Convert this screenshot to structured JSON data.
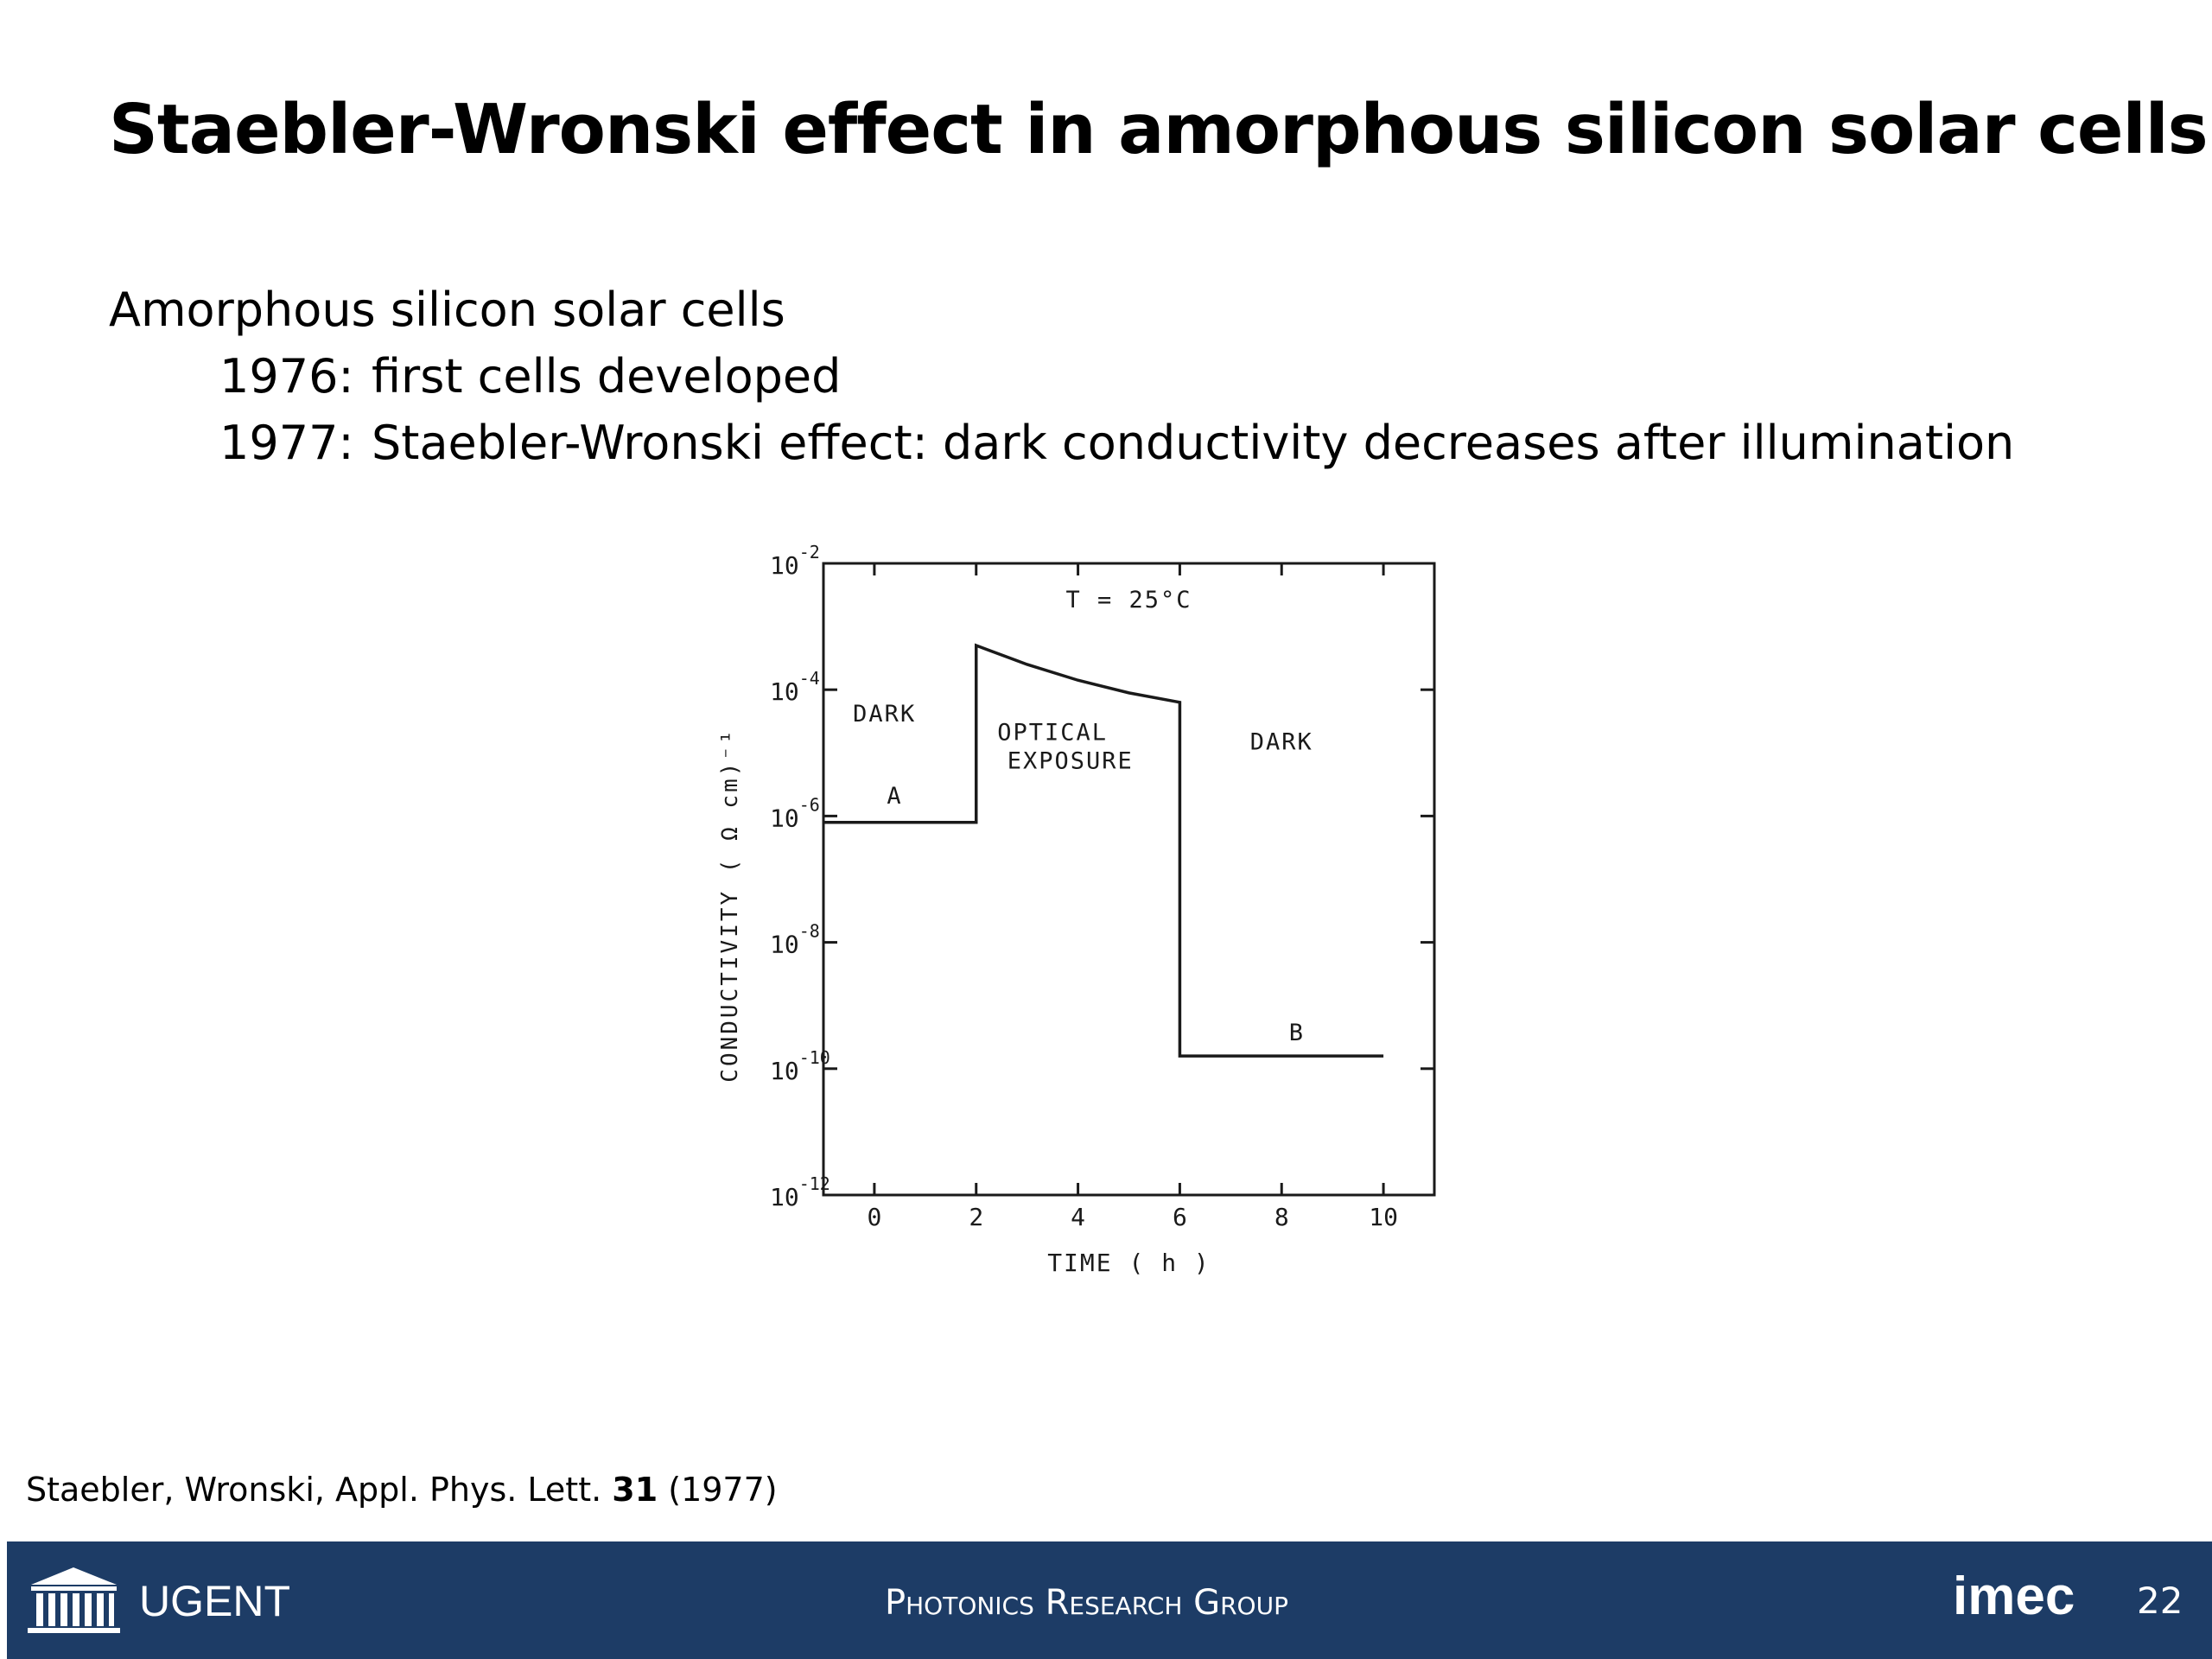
{
  "slide": {
    "title": "Staebler-Wronski effect in amorphous silicon solar cells",
    "intro": "Amorphous  silicon solar cells",
    "bullets": [
      {
        "year": "1976:",
        "text": "first cells developed"
      },
      {
        "year": "1977:",
        "text": "Staebler-Wronski effect: dark conductivity decreases after illumination"
      }
    ],
    "citation": {
      "before": "Staebler, Wronski, Appl. Phys. Lett. ",
      "volume": "31",
      "after": " (1977)"
    }
  },
  "footer": {
    "university": "UGENT",
    "group": "Photonics Research Group",
    "partner": "imec",
    "page_number": "22",
    "background_color": "#1d3c66",
    "logo_icon": "university-building-icon"
  },
  "chart_data": {
    "type": "line",
    "title": "",
    "xlabel": "TIME ( h )",
    "ylabel": "CONDUCTIVITY ( Ω cm)⁻¹",
    "x_ticks": [
      "0",
      "2",
      "4",
      "6",
      "8",
      "10"
    ],
    "x_tick_values": [
      0,
      2,
      4,
      6,
      8,
      10
    ],
    "xlim": [
      -1,
      11
    ],
    "y_scale": "log",
    "y_tick_exponents": [
      "-2",
      "-4",
      "-6",
      "-8",
      "-10",
      "-12"
    ],
    "y_tick_values": [
      -2,
      -4,
      -6,
      -8,
      -10,
      -12
    ],
    "ylim_log10": [
      -12,
      -2
    ],
    "series": [
      {
        "x": [
          -1,
          2,
          2,
          3,
          4,
          5,
          6,
          6,
          10
        ],
        "log10_y": [
          -6.1,
          -6.1,
          -3.3,
          -3.6,
          -3.85,
          -4.05,
          -4.2,
          -9.8,
          -9.8
        ]
      }
    ],
    "annotations": [
      {
        "text": "T = 25°C",
        "x": 5,
        "log10_y": -2.7
      },
      {
        "text": "DARK",
        "x": 0.2,
        "log10_y": -4.5
      },
      {
        "text": "OPTICAL",
        "x": 3.5,
        "log10_y": -4.8
      },
      {
        "text": "EXPOSURE",
        "x": 3.85,
        "log10_y": -5.25
      },
      {
        "text": "DARK",
        "x": 8,
        "log10_y": -4.95
      },
      {
        "text": "A",
        "x": 0.4,
        "log10_y": -5.8
      },
      {
        "text": "B",
        "x": 8.3,
        "log10_y": -9.55
      }
    ],
    "grid": false,
    "legend": "none"
  }
}
